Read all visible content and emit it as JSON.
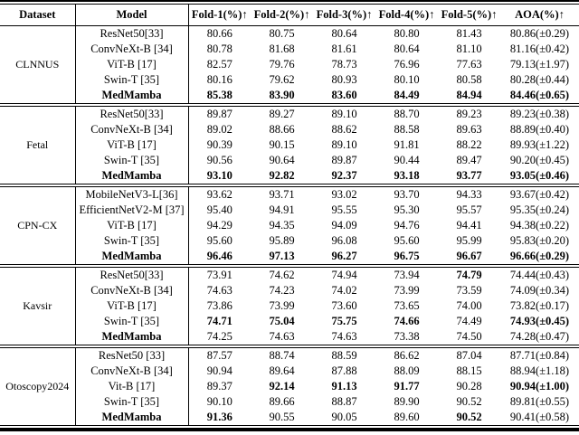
{
  "table": {
    "headers": [
      "Dataset",
      "Model",
      "Fold-1(%)↑",
      "Fold-2(%)↑",
      "Fold-3(%)↑",
      "Fold-4(%)↑",
      "Fold-5(%)↑",
      "AOA(%)↑"
    ],
    "sections": [
      {
        "dataset": "CLNNUS",
        "rows": [
          {
            "model": "ResNet50[33]",
            "model_bold": false,
            "values": [
              "80.66",
              "80.75",
              "80.64",
              "80.80",
              "81.43",
              "80.86(±0.29)"
            ],
            "bold": [
              0,
              0,
              0,
              0,
              0,
              0
            ]
          },
          {
            "model": "ConvNeXt-B [34]",
            "model_bold": false,
            "values": [
              "80.78",
              "81.68",
              "81.61",
              "80.64",
              "81.10",
              "81.16(±0.42)"
            ],
            "bold": [
              0,
              0,
              0,
              0,
              0,
              0
            ]
          },
          {
            "model": "ViT-B [17]",
            "model_bold": false,
            "values": [
              "82.57",
              "79.76",
              "78.73",
              "76.96",
              "77.63",
              "79.13(±1.97)"
            ],
            "bold": [
              0,
              0,
              0,
              0,
              0,
              0
            ]
          },
          {
            "model": "Swin-T [35]",
            "model_bold": false,
            "values": [
              "80.16",
              "79.62",
              "80.93",
              "80.10",
              "80.58",
              "80.28(±0.44)"
            ],
            "bold": [
              0,
              0,
              0,
              0,
              0,
              0
            ]
          },
          {
            "model": "MedMamba",
            "model_bold": true,
            "values": [
              "85.38",
              "83.90",
              "83.60",
              "84.49",
              "84.94",
              "84.46(±0.65)"
            ],
            "bold": [
              1,
              1,
              1,
              1,
              1,
              1
            ]
          }
        ]
      },
      {
        "dataset": "Fetal",
        "rows": [
          {
            "model": "ResNet50[33]",
            "model_bold": false,
            "values": [
              "89.87",
              "89.27",
              "89.10",
              "88.70",
              "89.23",
              "89.23(±0.38)"
            ],
            "bold": [
              0,
              0,
              0,
              0,
              0,
              0
            ]
          },
          {
            "model": "ConvNeXt-B [34]",
            "model_bold": false,
            "values": [
              "89.02",
              "88.66",
              "88.62",
              "88.58",
              "89.63",
              "88.89(±0.40)"
            ],
            "bold": [
              0,
              0,
              0,
              0,
              0,
              0
            ]
          },
          {
            "model": "ViT-B [17]",
            "model_bold": false,
            "values": [
              "90.39",
              "90.15",
              "89.10",
              "91.81",
              "88.22",
              "89.93(±1.22)"
            ],
            "bold": [
              0,
              0,
              0,
              0,
              0,
              0
            ]
          },
          {
            "model": "Swin-T [35]",
            "model_bold": false,
            "values": [
              "90.56",
              "90.64",
              "89.87",
              "90.44",
              "89.47",
              "90.20(±0.45)"
            ],
            "bold": [
              0,
              0,
              0,
              0,
              0,
              0
            ]
          },
          {
            "model": "MedMamba",
            "model_bold": true,
            "values": [
              "93.10",
              "92.82",
              "92.37",
              "93.18",
              "93.77",
              "93.05(±0.46)"
            ],
            "bold": [
              1,
              1,
              1,
              1,
              1,
              1
            ]
          }
        ]
      },
      {
        "dataset": "CPN-CX",
        "rows": [
          {
            "model": "MobileNetV3-L[36]",
            "model_bold": false,
            "values": [
              "93.62",
              "93.71",
              "93.02",
              "93.70",
              "94.33",
              "93.67(±0.42)"
            ],
            "bold": [
              0,
              0,
              0,
              0,
              0,
              0
            ]
          },
          {
            "model": "EfficientNetV2-M [37]",
            "model_bold": false,
            "values": [
              "95.40",
              "94.91",
              "95.55",
              "95.30",
              "95.57",
              "95.35(±0.24)"
            ],
            "bold": [
              0,
              0,
              0,
              0,
              0,
              0
            ]
          },
          {
            "model": "ViT-B [17]",
            "model_bold": false,
            "values": [
              "94.29",
              "94.35",
              "94.09",
              "94.76",
              "94.41",
              "94.38(±0.22)"
            ],
            "bold": [
              0,
              0,
              0,
              0,
              0,
              0
            ]
          },
          {
            "model": "Swin-T [35]",
            "model_bold": false,
            "values": [
              "95.60",
              "95.89",
              "96.08",
              "95.60",
              "95.99",
              "95.83(±0.20)"
            ],
            "bold": [
              0,
              0,
              0,
              0,
              0,
              0
            ]
          },
          {
            "model": "MedMamba",
            "model_bold": true,
            "values": [
              "96.46",
              "97.13",
              "96.27",
              "96.75",
              "96.67",
              "96.66(±0.29)"
            ],
            "bold": [
              1,
              1,
              1,
              1,
              1,
              1
            ]
          }
        ]
      },
      {
        "dataset": "Kavsir",
        "rows": [
          {
            "model": "ResNet50[33]",
            "model_bold": false,
            "values": [
              "73.91",
              "74.62",
              "74.94",
              "73.94",
              "74.79",
              "74.44(±0.43)"
            ],
            "bold": [
              0,
              0,
              0,
              0,
              1,
              0
            ]
          },
          {
            "model": "ConvNeXt-B [34]",
            "model_bold": false,
            "values": [
              "74.63",
              "74.23",
              "74.02",
              "73.99",
              "73.59",
              "74.09(±0.34)"
            ],
            "bold": [
              0,
              0,
              0,
              0,
              0,
              0
            ]
          },
          {
            "model": "ViT-B [17]",
            "model_bold": false,
            "values": [
              "73.86",
              "73.99",
              "73.60",
              "73.65",
              "74.00",
              "73.82(±0.17)"
            ],
            "bold": [
              0,
              0,
              0,
              0,
              0,
              0
            ]
          },
          {
            "model": "Swin-T [35]",
            "model_bold": false,
            "values": [
              "74.71",
              "75.04",
              "75.75",
              "74.66",
              "74.49",
              "74.93(±0.45)"
            ],
            "bold": [
              1,
              1,
              1,
              1,
              0,
              1
            ]
          },
          {
            "model": "MedMamba",
            "model_bold": true,
            "values": [
              "74.25",
              "74.63",
              "74.63",
              "73.38",
              "74.50",
              "74.28(±0.47)"
            ],
            "bold": [
              0,
              0,
              0,
              0,
              0,
              0
            ]
          }
        ]
      },
      {
        "dataset": "Otoscopy2024",
        "rows": [
          {
            "model": "ResNet50 [33]",
            "model_bold": false,
            "values": [
              "87.57",
              "88.74",
              "88.59",
              "86.62",
              "87.04",
              "87.71(±0.84)"
            ],
            "bold": [
              0,
              0,
              0,
              0,
              0,
              0
            ]
          },
          {
            "model": "ConvNeXt-B [34]",
            "model_bold": false,
            "values": [
              "90.94",
              "89.64",
              "87.88",
              "88.09",
              "88.15",
              "88.94(±1.18)"
            ],
            "bold": [
              0,
              0,
              0,
              0,
              0,
              0
            ]
          },
          {
            "model": "Vit-B [17]",
            "model_bold": false,
            "values": [
              "89.37",
              "92.14",
              "91.13",
              "91.77",
              "90.28",
              "90.94(±1.00)"
            ],
            "bold": [
              0,
              1,
              1,
              1,
              0,
              1
            ]
          },
          {
            "model": "Swin-T [35]",
            "model_bold": false,
            "values": [
              "90.10",
              "89.66",
              "88.87",
              "89.90",
              "90.52",
              "89.81(±0.55)"
            ],
            "bold": [
              0,
              0,
              0,
              0,
              0,
              0
            ]
          },
          {
            "model": "MedMamba",
            "model_bold": true,
            "values": [
              "91.36",
              "90.55",
              "90.05",
              "89.60",
              "90.52",
              "90.41(±0.58)"
            ],
            "bold": [
              1,
              0,
              0,
              0,
              1,
              0
            ]
          }
        ]
      }
    ]
  }
}
